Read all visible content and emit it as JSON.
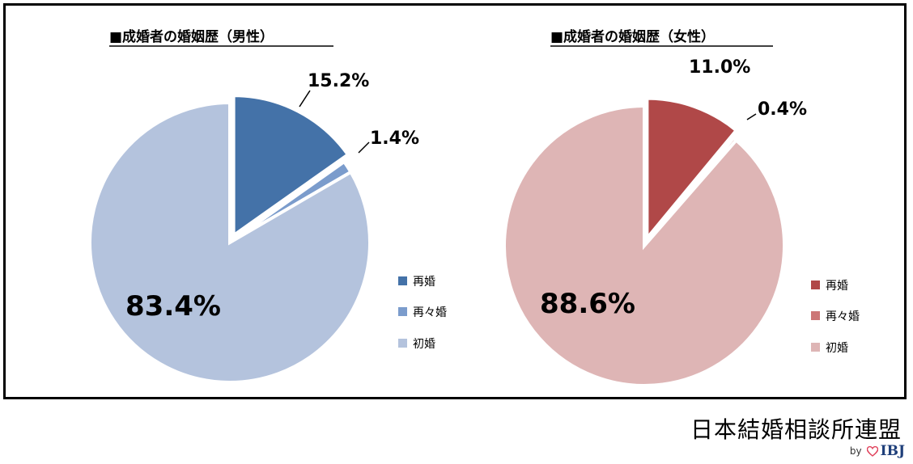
{
  "chart_data": [
    {
      "type": "pie",
      "title": "■成婚者の婚姻歴（男性）",
      "slices": [
        {
          "label": "再婚",
          "value": 15.2,
          "value_label": "15.2%",
          "color": "#4472a8"
        },
        {
          "label": "再々婚",
          "value": 1.4,
          "value_label": "1.4%",
          "color": "#7b9ccc"
        },
        {
          "label": "初婚",
          "value": 83.4,
          "value_label": "83.4%",
          "color": "#b4c3dd"
        }
      ]
    },
    {
      "type": "pie",
      "title": "■成婚者の婚姻歴（女性）",
      "slices": [
        {
          "label": "再婚",
          "value": 11.0,
          "value_label": "11.0%",
          "color": "#b04848"
        },
        {
          "label": "再々婚",
          "value": 0.4,
          "value_label": "0.4%",
          "color": "#cc7777"
        },
        {
          "label": "初婚",
          "value": 88.6,
          "value_label": "88.6%",
          "color": "#deb5b5"
        }
      ]
    }
  ],
  "footer": {
    "org_name": "日本結婚相談所連盟",
    "by": "by",
    "brand": "IBJ",
    "heart_color": "#e0405a"
  }
}
